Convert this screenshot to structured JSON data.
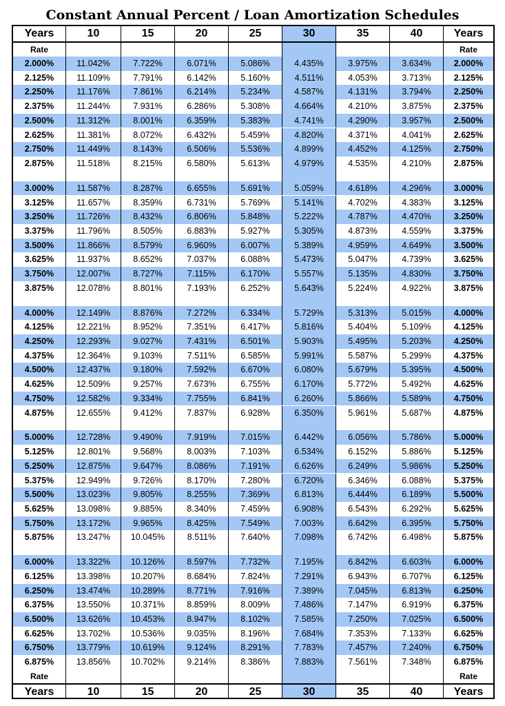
{
  "title": "Constant Annual Percent / Loan Amortization Schedules",
  "colors": {
    "highlight": "#a3c8f5",
    "border": "#000000"
  },
  "header": [
    "Years",
    "10",
    "15",
    "20",
    "25",
    "30",
    "35",
    "40",
    "Years"
  ],
  "rate_label": "Rate",
  "groups": [
    [
      [
        "2.000%",
        "11.042%",
        "7.722%",
        "6.071%",
        "5.086%",
        "4.435%",
        "3.975%",
        "3.634%",
        "2.000%"
      ],
      [
        "2.125%",
        "11.109%",
        "7.791%",
        "6.142%",
        "5.160%",
        "4.511%",
        "4.053%",
        "3.713%",
        "2.125%"
      ],
      [
        "2.250%",
        "11.176%",
        "7.861%",
        "6.214%",
        "5.234%",
        "4.587%",
        "4.131%",
        "3.794%",
        "2.250%"
      ],
      [
        "2.375%",
        "11.244%",
        "7.931%",
        "6.286%",
        "5.308%",
        "4.664%",
        "4.210%",
        "3.875%",
        "2.375%"
      ],
      [
        "2.500%",
        "11.312%",
        "8.001%",
        "6.359%",
        "5.383%",
        "4.741%",
        "4.290%",
        "3.957%",
        "2.500%"
      ],
      [
        "2.625%",
        "11.381%",
        "8.072%",
        "6.432%",
        "5.459%",
        "4.820%",
        "4.371%",
        "4.041%",
        "2.625%"
      ],
      [
        "2.750%",
        "11.449%",
        "8.143%",
        "6.506%",
        "5.536%",
        "4.899%",
        "4.452%",
        "4.125%",
        "2.750%"
      ],
      [
        "2.875%",
        "11.518%",
        "8.215%",
        "6.580%",
        "5.613%",
        "4.979%",
        "4.535%",
        "4.210%",
        "2.875%"
      ]
    ],
    [
      [
        "3.000%",
        "11.587%",
        "8.287%",
        "6.655%",
        "5.691%",
        "5.059%",
        "4.618%",
        "4.296%",
        "3.000%"
      ],
      [
        "3.125%",
        "11.657%",
        "8.359%",
        "6.731%",
        "5.769%",
        "5.141%",
        "4.702%",
        "4.383%",
        "3.125%"
      ],
      [
        "3.250%",
        "11.726%",
        "8.432%",
        "6.806%",
        "5.848%",
        "5.222%",
        "4.787%",
        "4.470%",
        "3.250%"
      ],
      [
        "3.375%",
        "11.796%",
        "8.505%",
        "6.883%",
        "5.927%",
        "5.305%",
        "4.873%",
        "4.559%",
        "3.375%"
      ],
      [
        "3.500%",
        "11.866%",
        "8.579%",
        "6.960%",
        "6.007%",
        "5.389%",
        "4.959%",
        "4.649%",
        "3.500%"
      ],
      [
        "3.625%",
        "11.937%",
        "8.652%",
        "7.037%",
        "6.088%",
        "5.473%",
        "5.047%",
        "4.739%",
        "3.625%"
      ],
      [
        "3.750%",
        "12.007%",
        "8.727%",
        "7.115%",
        "6.170%",
        "5.557%",
        "5.135%",
        "4.830%",
        "3.750%"
      ],
      [
        "3.875%",
        "12.078%",
        "8.801%",
        "7.193%",
        "6.252%",
        "5.643%",
        "5.224%",
        "4.922%",
        "3.875%"
      ]
    ],
    [
      [
        "4.000%",
        "12.149%",
        "8.876%",
        "7.272%",
        "6.334%",
        "5.729%",
        "5.313%",
        "5.015%",
        "4.000%"
      ],
      [
        "4.125%",
        "12.221%",
        "8.952%",
        "7.351%",
        "6.417%",
        "5.816%",
        "5.404%",
        "5.109%",
        "4.125%"
      ],
      [
        "4.250%",
        "12.293%",
        "9.027%",
        "7.431%",
        "6.501%",
        "5.903%",
        "5.495%",
        "5.203%",
        "4.250%"
      ],
      [
        "4.375%",
        "12.364%",
        "9.103%",
        "7.511%",
        "6.585%",
        "5.991%",
        "5.587%",
        "5.299%",
        "4.375%"
      ],
      [
        "4.500%",
        "12.437%",
        "9.180%",
        "7.592%",
        "6.670%",
        "6.080%",
        "5.679%",
        "5.395%",
        "4.500%"
      ],
      [
        "4.625%",
        "12.509%",
        "9.257%",
        "7.673%",
        "6.755%",
        "6.170%",
        "5.772%",
        "5.492%",
        "4.625%"
      ],
      [
        "4.750%",
        "12.582%",
        "9.334%",
        "7.755%",
        "6.841%",
        "6.260%",
        "5.866%",
        "5.589%",
        "4.750%"
      ],
      [
        "4.875%",
        "12.655%",
        "9.412%",
        "7.837%",
        "6.928%",
        "6.350%",
        "5.961%",
        "5.687%",
        "4.875%"
      ]
    ],
    [
      [
        "5.000%",
        "12.728%",
        "9.490%",
        "7.919%",
        "7.015%",
        "6.442%",
        "6.056%",
        "5.786%",
        "5.000%"
      ],
      [
        "5.125%",
        "12.801%",
        "9.568%",
        "8.003%",
        "7.103%",
        "6.534%",
        "6.152%",
        "5.886%",
        "5.125%"
      ],
      [
        "5.250%",
        "12.875%",
        "9.647%",
        "8.086%",
        "7.191%",
        "6.626%",
        "6.249%",
        "5.986%",
        "5.250%"
      ],
      [
        "5.375%",
        "12.949%",
        "9.726%",
        "8.170%",
        "7.280%",
        "6.720%",
        "6.346%",
        "6.088%",
        "5.375%"
      ],
      [
        "5.500%",
        "13.023%",
        "9.805%",
        "8.255%",
        "7.369%",
        "6.813%",
        "6.444%",
        "6.189%",
        "5.500%"
      ],
      [
        "5.625%",
        "13.098%",
        "9.885%",
        "8.340%",
        "7.459%",
        "6.908%",
        "6.543%",
        "6.292%",
        "5.625%"
      ],
      [
        "5.750%",
        "13.172%",
        "9.965%",
        "8.425%",
        "7.549%",
        "7.003%",
        "6.642%",
        "6.395%",
        "5.750%"
      ],
      [
        "5.875%",
        "13.247%",
        "10.045%",
        "8.511%",
        "7.640%",
        "7.098%",
        "6.742%",
        "6.498%",
        "5.875%"
      ]
    ],
    [
      [
        "6.000%",
        "13.322%",
        "10.126%",
        "8.597%",
        "7.732%",
        "7.195%",
        "6.842%",
        "6.603%",
        "6.000%"
      ],
      [
        "6.125%",
        "13.398%",
        "10.207%",
        "8.684%",
        "7.824%",
        "7.291%",
        "6.943%",
        "6.707%",
        "6.125%"
      ],
      [
        "6.250%",
        "13.474%",
        "10.289%",
        "8.771%",
        "7.916%",
        "7.389%",
        "7.045%",
        "6.813%",
        "6.250%"
      ],
      [
        "6.375%",
        "13.550%",
        "10.371%",
        "8.859%",
        "8.009%",
        "7.486%",
        "7.147%",
        "6.919%",
        "6.375%"
      ],
      [
        "6.500%",
        "13.626%",
        "10.453%",
        "8.947%",
        "8.102%",
        "7.585%",
        "7.250%",
        "7.025%",
        "6.500%"
      ],
      [
        "6.625%",
        "13.702%",
        "10.536%",
        "9.035%",
        "8.196%",
        "7.684%",
        "7.353%",
        "7.133%",
        "6.625%"
      ],
      [
        "6.750%",
        "13.779%",
        "10.619%",
        "9.124%",
        "8.291%",
        "7.783%",
        "7.457%",
        "7.240%",
        "6.750%"
      ],
      [
        "6.875%",
        "13.856%",
        "10.702%",
        "9.214%",
        "8.386%",
        "7.883%",
        "7.561%",
        "7.348%",
        "6.875%"
      ]
    ]
  ]
}
